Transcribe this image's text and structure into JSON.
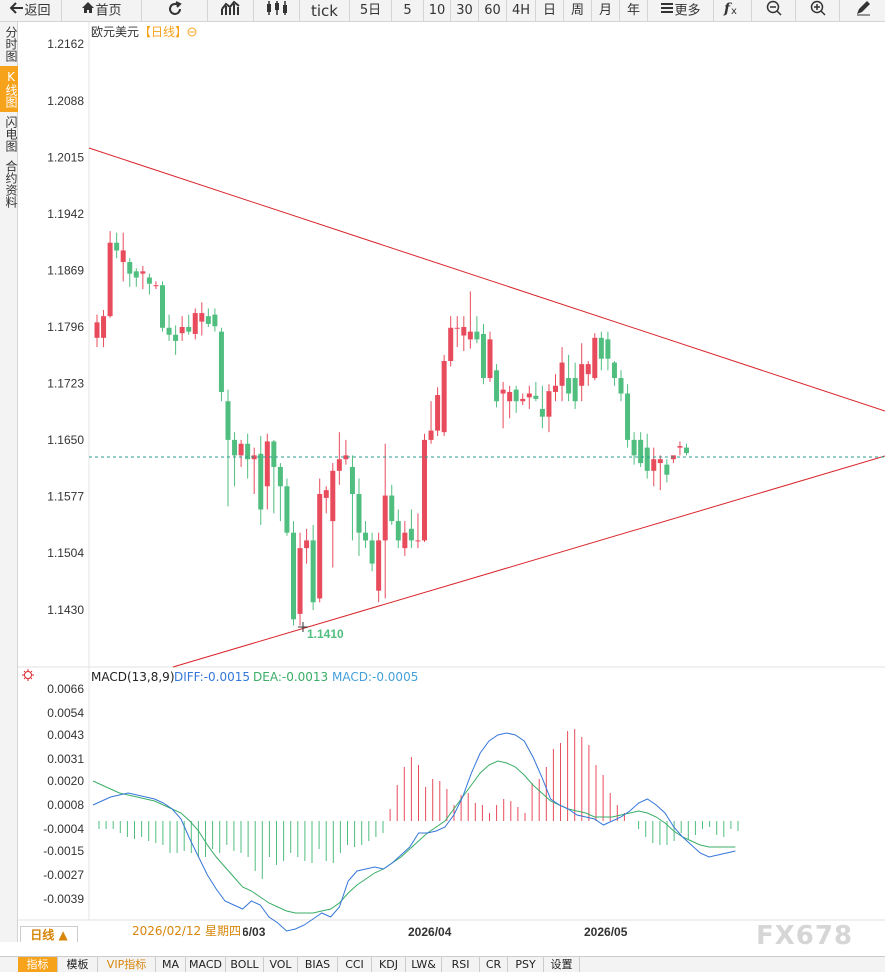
{
  "toolbar": {
    "back": "返回",
    "home": "首页",
    "tick": "tick",
    "five_day": "5日",
    "p5": "5",
    "p10": "10",
    "p30": "30",
    "p60": "60",
    "p4h": "4H",
    "day": "日",
    "week": "周",
    "month": "月",
    "year": "年",
    "more": "更多"
  },
  "sidebar": {
    "tabs": [
      "分时图",
      "K线图",
      "闪电图",
      "合约资料"
    ],
    "active_index": 1
  },
  "main_chart": {
    "symbol": "欧元美元",
    "period": "【日线】",
    "low_marker": "1.1410"
  },
  "macd": {
    "label": "MACD(13,8,9)",
    "diff": "DIFF:-0.0015",
    "dea": "DEA:-0.0013",
    "macd": "MACD:-0.0005"
  },
  "axis": {
    "price_ticks": [
      "1.2162",
      "1.2088",
      "1.2015",
      "1.1942",
      "1.1869",
      "1.1796",
      "1.1723",
      "1.1650",
      "1.1577",
      "1.1504",
      "1.1430"
    ],
    "macd_ticks": [
      "0.0066",
      "0.0054",
      "0.0043",
      "0.0031",
      "0.0020",
      "0.0008",
      "-0.0004",
      "-0.0015",
      "-0.0027",
      "-0.0039"
    ],
    "dates": [
      "2026/03",
      "2026/04",
      "2026/05"
    ],
    "cursor_date": "2026/02/12 星期四"
  },
  "bottom": {
    "period_selector": "日线 ▲",
    "indicators": [
      "指标",
      "模板",
      "VIP指标",
      "MA",
      "MACD",
      "BOLL",
      "VOL",
      "BIAS",
      "CCI",
      "KDJ",
      "LW&",
      "RSI",
      "CR",
      "PSY",
      "设置"
    ],
    "watermark": "FX678"
  },
  "colors": {
    "up": "#e84b5b",
    "down": "#4fbe7f",
    "trendline": "#d9252b",
    "diff_line": "#3477d9",
    "dea_line": "#3aad66",
    "accent": "#f7a21b",
    "last_price_line": "#2a9d8f"
  },
  "chart_data": {
    "type": "candlestick",
    "title": "欧元美元",
    "ylim": [
      1.138,
      1.218
    ],
    "candles": [
      {
        "o": 1.1782,
        "h": 1.1812,
        "l": 1.177,
        "c": 1.1802
      },
      {
        "o": 1.1782,
        "h": 1.1818,
        "l": 1.177,
        "c": 1.181
      },
      {
        "o": 1.181,
        "h": 1.192,
        "l": 1.1808,
        "c": 1.1905
      },
      {
        "o": 1.1905,
        "h": 1.1918,
        "l": 1.1885,
        "c": 1.1895
      },
      {
        "o": 1.188,
        "h": 1.1918,
        "l": 1.1855,
        "c": 1.1895
      },
      {
        "o": 1.188,
        "h": 1.1885,
        "l": 1.1848,
        "c": 1.1865
      },
      {
        "o": 1.1868,
        "h": 1.1872,
        "l": 1.1848,
        "c": 1.186
      },
      {
        "o": 1.1865,
        "h": 1.1875,
        "l": 1.1845,
        "c": 1.1868
      },
      {
        "o": 1.186,
        "h": 1.1865,
        "l": 1.1838,
        "c": 1.1852
      },
      {
        "o": 1.185,
        "h": 1.1855,
        "l": 1.1845,
        "c": 1.185
      },
      {
        "o": 1.185,
        "h": 1.1855,
        "l": 1.179,
        "c": 1.1795
      },
      {
        "o": 1.1795,
        "h": 1.1812,
        "l": 1.1778,
        "c": 1.1786
      },
      {
        "o": 1.1786,
        "h": 1.1798,
        "l": 1.176,
        "c": 1.1778
      },
      {
        "o": 1.1788,
        "h": 1.181,
        "l": 1.1778,
        "c": 1.1796
      },
      {
        "o": 1.1796,
        "h": 1.1812,
        "l": 1.1786,
        "c": 1.179
      },
      {
        "o": 1.1787,
        "h": 1.182,
        "l": 1.178,
        "c": 1.1814
      },
      {
        "o": 1.1803,
        "h": 1.1828,
        "l": 1.1785,
        "c": 1.1814
      },
      {
        "o": 1.181,
        "h": 1.182,
        "l": 1.1796,
        "c": 1.18
      },
      {
        "o": 1.1812,
        "h": 1.182,
        "l": 1.179,
        "c": 1.1797
      },
      {
        "o": 1.179,
        "h": 1.1795,
        "l": 1.17,
        "c": 1.1712
      },
      {
        "o": 1.17,
        "h": 1.1715,
        "l": 1.1564,
        "c": 1.165
      },
      {
        "o": 1.165,
        "h": 1.166,
        "l": 1.159,
        "c": 1.163
      },
      {
        "o": 1.163,
        "h": 1.165,
        "l": 1.1615,
        "c": 1.1645
      },
      {
        "o": 1.1645,
        "h": 1.1658,
        "l": 1.16,
        "c": 1.1625
      },
      {
        "o": 1.1625,
        "h": 1.164,
        "l": 1.158,
        "c": 1.163
      },
      {
        "o": 1.1632,
        "h": 1.1655,
        "l": 1.154,
        "c": 1.156
      },
      {
        "o": 1.159,
        "h": 1.1658,
        "l": 1.156,
        "c": 1.1648
      },
      {
        "o": 1.1648,
        "h": 1.165,
        "l": 1.1555,
        "c": 1.1615
      },
      {
        "o": 1.1615,
        "h": 1.162,
        "l": 1.1545,
        "c": 1.159
      },
      {
        "o": 1.159,
        "h": 1.16,
        "l": 1.1526,
        "c": 1.153
      },
      {
        "o": 1.153,
        "h": 1.1545,
        "l": 1.141,
        "c": 1.1418
      },
      {
        "o": 1.1425,
        "h": 1.153,
        "l": 1.141,
        "c": 1.151
      },
      {
        "o": 1.151,
        "h": 1.1535,
        "l": 1.149,
        "c": 1.152
      },
      {
        "o": 1.152,
        "h": 1.154,
        "l": 1.143,
        "c": 1.144
      },
      {
        "o": 1.1445,
        "h": 1.16,
        "l": 1.144,
        "c": 1.158
      },
      {
        "o": 1.1575,
        "h": 1.159,
        "l": 1.1555,
        "c": 1.1585
      },
      {
        "o": 1.1545,
        "h": 1.162,
        "l": 1.1485,
        "c": 1.161
      },
      {
        "o": 1.161,
        "h": 1.166,
        "l": 1.1592,
        "c": 1.1625
      },
      {
        "o": 1.1625,
        "h": 1.165,
        "l": 1.1618,
        "c": 1.163
      },
      {
        "o": 1.1615,
        "h": 1.163,
        "l": 1.152,
        "c": 1.158
      },
      {
        "o": 1.158,
        "h": 1.16,
        "l": 1.15,
        "c": 1.153
      },
      {
        "o": 1.153,
        "h": 1.1545,
        "l": 1.151,
        "c": 1.152
      },
      {
        "o": 1.152,
        "h": 1.153,
        "l": 1.148,
        "c": 1.149
      },
      {
        "o": 1.1455,
        "h": 1.153,
        "l": 1.144,
        "c": 1.152
      },
      {
        "o": 1.152,
        "h": 1.1645,
        "l": 1.1445,
        "c": 1.1578
      },
      {
        "o": 1.1578,
        "h": 1.1592,
        "l": 1.154,
        "c": 1.1545
      },
      {
        "o": 1.1545,
        "h": 1.156,
        "l": 1.151,
        "c": 1.152
      },
      {
        "o": 1.151,
        "h": 1.1545,
        "l": 1.15,
        "c": 1.153
      },
      {
        "o": 1.1535,
        "h": 1.156,
        "l": 1.151,
        "c": 1.152
      },
      {
        "o": 1.152,
        "h": 1.1555,
        "l": 1.151,
        "c": 1.152
      },
      {
        "o": 1.152,
        "h": 1.1658,
        "l": 1.1518,
        "c": 1.165
      },
      {
        "o": 1.165,
        "h": 1.17,
        "l": 1.1645,
        "c": 1.1662
      },
      {
        "o": 1.1662,
        "h": 1.1718,
        "l": 1.1655,
        "c": 1.1708
      },
      {
        "o": 1.166,
        "h": 1.176,
        "l": 1.1655,
        "c": 1.1752
      },
      {
        "o": 1.1752,
        "h": 1.181,
        "l": 1.1745,
        "c": 1.1795
      },
      {
        "o": 1.1795,
        "h": 1.181,
        "l": 1.177,
        "c": 1.1795
      },
      {
        "o": 1.1785,
        "h": 1.181,
        "l": 1.1765,
        "c": 1.1796
      },
      {
        "o": 1.178,
        "h": 1.1842,
        "l": 1.1768,
        "c": 1.179
      },
      {
        "o": 1.179,
        "h": 1.181,
        "l": 1.1775,
        "c": 1.178
      },
      {
        "o": 1.1787,
        "h": 1.18,
        "l": 1.1722,
        "c": 1.173
      },
      {
        "o": 1.173,
        "h": 1.179,
        "l": 1.1725,
        "c": 1.178
      },
      {
        "o": 1.174,
        "h": 1.1748,
        "l": 1.1692,
        "c": 1.17
      },
      {
        "o": 1.171,
        "h": 1.1725,
        "l": 1.1665,
        "c": 1.1715
      },
      {
        "o": 1.17,
        "h": 1.172,
        "l": 1.1678,
        "c": 1.1712
      },
      {
        "o": 1.1715,
        "h": 1.172,
        "l": 1.1685,
        "c": 1.17
      },
      {
        "o": 1.17,
        "h": 1.171,
        "l": 1.1695,
        "c": 1.1703
      },
      {
        "o": 1.1705,
        "h": 1.172,
        "l": 1.169,
        "c": 1.171
      },
      {
        "o": 1.1707,
        "h": 1.1725,
        "l": 1.17,
        "c": 1.1703
      },
      {
        "o": 1.169,
        "h": 1.172,
        "l": 1.1665,
        "c": 1.168
      },
      {
        "o": 1.168,
        "h": 1.1722,
        "l": 1.166,
        "c": 1.1713
      },
      {
        "o": 1.1712,
        "h": 1.1735,
        "l": 1.17,
        "c": 1.172
      },
      {
        "o": 1.172,
        "h": 1.177,
        "l": 1.17,
        "c": 1.175
      },
      {
        "o": 1.173,
        "h": 1.176,
        "l": 1.17,
        "c": 1.171
      },
      {
        "o": 1.173,
        "h": 1.175,
        "l": 1.169,
        "c": 1.17
      },
      {
        "o": 1.172,
        "h": 1.1775,
        "l": 1.17,
        "c": 1.1748
      },
      {
        "o": 1.1735,
        "h": 1.1752,
        "l": 1.172,
        "c": 1.1748
      },
      {
        "o": 1.173,
        "h": 1.1788,
        "l": 1.1727,
        "c": 1.1782
      },
      {
        "o": 1.1782,
        "h": 1.179,
        "l": 1.174,
        "c": 1.1755
      },
      {
        "o": 1.178,
        "h": 1.179,
        "l": 1.174,
        "c": 1.1755
      },
      {
        "o": 1.175,
        "h": 1.1752,
        "l": 1.172,
        "c": 1.173
      },
      {
        "o": 1.173,
        "h": 1.174,
        "l": 1.17,
        "c": 1.171
      },
      {
        "o": 1.171,
        "h": 1.1722,
        "l": 1.164,
        "c": 1.165
      },
      {
        "o": 1.165,
        "h": 1.166,
        "l": 1.1618,
        "c": 1.163
      },
      {
        "o": 1.165,
        "h": 1.166,
        "l": 1.1615,
        "c": 1.162
      },
      {
        "o": 1.164,
        "h": 1.1658,
        "l": 1.16,
        "c": 1.161
      },
      {
        "o": 1.161,
        "h": 1.164,
        "l": 1.159,
        "c": 1.1625
      },
      {
        "o": 1.162,
        "h": 1.163,
        "l": 1.1585,
        "c": 1.1625
      },
      {
        "o": 1.1618,
        "h": 1.1625,
        "l": 1.1595,
        "c": 1.1605
      },
      {
        "o": 1.1625,
        "h": 1.163,
        "l": 1.162,
        "c": 1.163
      },
      {
        "o": 1.164,
        "h": 1.1648,
        "l": 1.163,
        "c": 1.1642
      },
      {
        "o": 1.164,
        "h": 1.1645,
        "l": 1.163,
        "c": 1.1633
      }
    ],
    "macd_hist": [
      -0.0004,
      -0.0004,
      -0.0004,
      -0.0006,
      -0.0008,
      -0.0009,
      -0.0008,
      -0.001,
      -0.0011,
      -0.0012,
      -0.0016,
      -0.0016,
      -0.0015,
      -0.0016,
      -0.0018,
      -0.0018,
      -0.0014,
      -0.0016,
      -0.0012,
      -0.0015,
      -0.0016,
      -0.0018,
      -0.0025,
      -0.0029,
      -0.0018,
      -0.0022,
      -0.002,
      -0.0016,
      -0.0018,
      -0.002,
      -0.0021,
      -0.0014,
      -0.002,
      -0.0021,
      -0.0016,
      -0.0012,
      -0.0013,
      -0.0012,
      -0.001,
      -0.0008,
      -0.0006,
      0.0006,
      0.0018,
      0.0027,
      0.0032,
      0.0028,
      0.0017,
      0.0021,
      0.002,
      0.0016,
      0.0008,
      0.0013,
      0.0014,
      0.0009,
      0.0008,
      0.0004,
      0.0008,
      0.0011,
      0.001,
      0.0007,
      0.0004,
      0.0019,
      0.0021,
      0.0027,
      0.0036,
      0.0039,
      0.0045,
      0.0046,
      0.0042,
      0.0038,
      0.0028,
      0.0023,
      0.0014,
      0.0008,
      0.0004,
      0.0,
      -0.0004,
      -0.0008,
      -0.0011,
      -0.0012,
      -0.0012,
      -0.001,
      -0.0006,
      -0.0009,
      -0.0007,
      -0.0004,
      -0.0003,
      -0.0007,
      -0.0008,
      -0.0004,
      -0.0005
    ],
    "diff_line": [
      0.0008,
      0.001,
      0.0012,
      0.0013,
      0.0014,
      0.0013,
      0.0012,
      0.0011,
      0.0009,
      0.0006,
      0.0001,
      -0.0009,
      -0.0018,
      -0.0027,
      -0.0034,
      -0.004,
      -0.0042,
      -0.0044,
      -0.004,
      -0.0042,
      -0.0048,
      -0.0051,
      -0.0055,
      -0.0054,
      -0.0052,
      -0.0049,
      -0.0046,
      -0.0048,
      -0.0043,
      -0.003,
      -0.0025,
      -0.0024,
      -0.0023,
      -0.0024,
      -0.0021,
      -0.0017,
      -0.0013,
      -0.0006,
      -0.0006,
      -0.0005,
      -0.0003,
      0.0003,
      0.0012,
      0.0024,
      0.0034,
      0.004,
      0.0043,
      0.0044,
      0.0043,
      0.004,
      0.0032,
      0.0022,
      0.0011,
      0.0008,
      0.0006,
      0.0003,
      0.0002,
      0.0001,
      -0.0002,
      0.0,
      0.0002,
      0.0005,
      0.0009,
      0.0011,
      0.0008,
      0.0004,
      -0.0003,
      -0.0008,
      -0.0012,
      -0.0016,
      -0.0018,
      -0.0017,
      -0.0016,
      -0.0015
    ],
    "dea_line": [
      0.002,
      0.0018,
      0.0016,
      0.0014,
      0.0013,
      0.0012,
      0.0011,
      0.001,
      0.0008,
      0.0006,
      0.0004,
      0.0,
      -0.0005,
      -0.0012,
      -0.0018,
      -0.0023,
      -0.0028,
      -0.0033,
      -0.0035,
      -0.0038,
      -0.0041,
      -0.0043,
      -0.0045,
      -0.0046,
      -0.0046,
      -0.0046,
      -0.0045,
      -0.0044,
      -0.0041,
      -0.0036,
      -0.0032,
      -0.0029,
      -0.0026,
      -0.0024,
      -0.0021,
      -0.0018,
      -0.0014,
      -0.001,
      -0.0006,
      -0.0003,
      0.0,
      0.0006,
      0.0012,
      0.0018,
      0.0024,
      0.0028,
      0.003,
      0.0029,
      0.0027,
      0.0023,
      0.0018,
      0.0014,
      0.001,
      0.0008,
      0.0006,
      0.0005,
      0.0004,
      0.0002,
      0.0002,
      0.0002,
      0.0003,
      0.0004,
      0.0005,
      0.0004,
      0.0002,
      -0.0001,
      -0.0005,
      -0.0008,
      -0.001,
      -0.0012,
      -0.0013,
      -0.0013,
      -0.0013,
      -0.0013
    ]
  }
}
